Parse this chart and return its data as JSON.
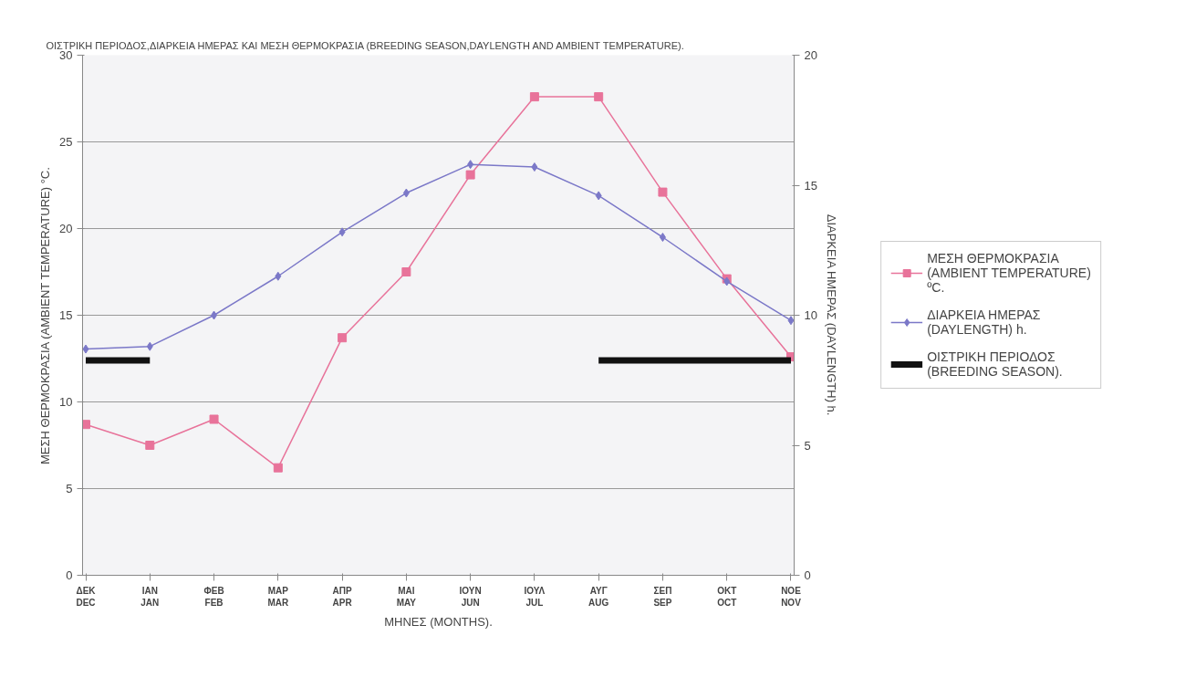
{
  "chart_data": {
    "type": "line",
    "title": "ΟΙΣΤΡΙΚΗ ΠΕΡΙΟΔΟΣ,ΔΙΑΡΚΕΙΑ ΗΜΕΡΑΣ ΚΑΙ ΜΕΣΗ ΘΕΡΜΟΚΡΑΣΙΑ (BREEDING SEASON,DAYLENGTH AND AMBIENT  TEMPERATURE).",
    "xlabel": "ΜΗΝΕΣ (MONTHS).",
    "ylabel": "ΜΕΣΗ ΘΕΡΜΟΚΡΑΣΙΑ (AMBIENT TEMPERATURE) °C.",
    "y2label": "ΔΙΑΡΚΕΙΑ ΗΜΕΡΑΣ (DAYLENGTH) h.",
    "categories": [
      "ΔΕΚ\nDEC",
      "ΙΑΝ\nJAN",
      "ΦΕΒ\nFEB",
      "ΜΑΡ\nMAR",
      "ΑΠΡ\nAPR",
      "ΜΑΙ\nMAY",
      "ΙΟΥΝ\nJUN",
      "ΙΟΥΛ\nJUL",
      "ΑΥΓ\nAUG",
      "ΣΕΠ\nSEP",
      "ΟΚΤ\nOCT",
      "ΝΟΕ\nNOV"
    ],
    "ylim": [
      0,
      30
    ],
    "yticks": [
      0,
      5,
      10,
      15,
      20,
      25,
      30
    ],
    "y2lim": [
      0,
      20
    ],
    "y2ticks": [
      0,
      5,
      10,
      15,
      20
    ],
    "grid": "y",
    "legend": "right",
    "series": [
      {
        "name": "ΜΕΣΗ ΘΕΡΜΟΚΡΑΣΙΑ (AMBIENT TEMPERATURE) ºC.",
        "color": "#e8739a",
        "marker": "square",
        "values": [
          8.7,
          7.5,
          9.0,
          6.2,
          13.7,
          17.5,
          23.1,
          27.6,
          27.6,
          22.1,
          17.1,
          12.6
        ]
      },
      {
        "name": "ΔΙΑΡΚΕΙΑ ΗΜΕΡΑΣ (DAYLENGTH) h.",
        "color": "#7b78c8",
        "marker": "diamond",
        "axis": "y2",
        "values": [
          8.7,
          8.8,
          10.0,
          11.5,
          13.2,
          14.7,
          15.8,
          15.7,
          14.6,
          13.0,
          11.3,
          9.8
        ]
      },
      {
        "name": "ΟΙΣΤΡΙΚΗ ΠΕΡΙΟΔΟΣ (BREEDING SEASON).",
        "color": "#111111",
        "marker": "none",
        "values": [
          12.4,
          12.4,
          null,
          null,
          null,
          null,
          null,
          null,
          12.4,
          12.4,
          12.4,
          12.4
        ]
      }
    ]
  }
}
